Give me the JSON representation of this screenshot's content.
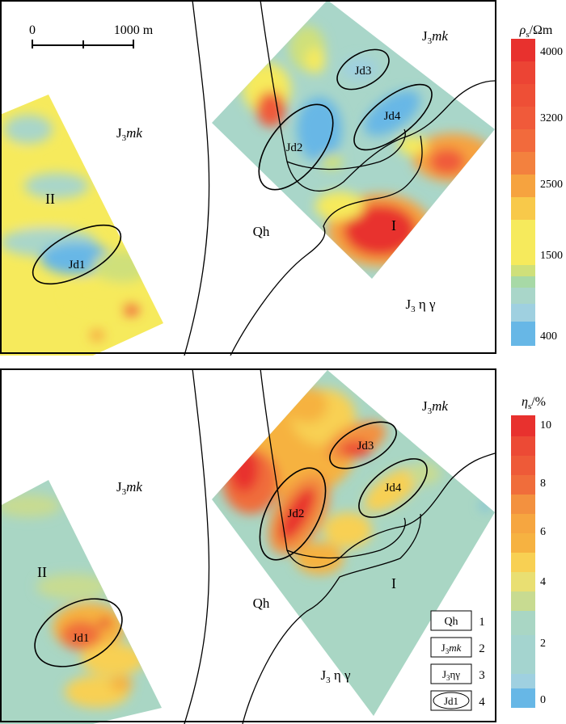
{
  "top_map": {
    "scale_bar": {
      "zero": "0",
      "end": "1000 m"
    },
    "units": {
      "qh": "Qh",
      "j3mk_top": "J3mk",
      "j3mk_left": "J3mk",
      "granite": "J3 η γ"
    },
    "zones": {
      "one": "I",
      "two": "II"
    },
    "anomalies": [
      "Jd1",
      "Jd2",
      "Jd3",
      "Jd4"
    ],
    "colorbar": {
      "title": "ρs/Ωm",
      "ticks": [
        "4000",
        "3200",
        "2500",
        "1500",
        "400"
      ],
      "colors": [
        "#e8312e",
        "#f05a3a",
        "#f3813e",
        "#f6a33f",
        "#f8c94a",
        "#f6ea5c",
        "#cfe07a",
        "#a7d9a6",
        "#a9d6c9",
        "#9fd0e0",
        "#67b7e6"
      ]
    }
  },
  "bottom_map": {
    "units": {
      "qh": "Qh",
      "j3mk_top": "J3mk",
      "j3mk_left": "J3mk",
      "granite": "J3 η γ"
    },
    "zones": {
      "one": "I",
      "two": "II"
    },
    "anomalies": [
      "Jd1",
      "Jd2",
      "Jd3",
      "Jd4"
    ],
    "colorbar": {
      "title": "ηs/%",
      "ticks": [
        "10",
        "8",
        "6",
        "4",
        "2",
        "0"
      ],
      "colors": [
        "#e8312e",
        "#ec4a35",
        "#f06d3b",
        "#f3913f",
        "#f6b241",
        "#f8d053",
        "#e9df72",
        "#c8db91",
        "#a9d6c4",
        "#a4d4cf",
        "#9fd0e0",
        "#67b7e6"
      ]
    },
    "legend": [
      {
        "symbol": "Qh",
        "number": "1"
      },
      {
        "symbol": "J3mk",
        "number": "2"
      },
      {
        "symbol": "J3ηγ",
        "number": "3"
      },
      {
        "symbol": "Jd1",
        "number": "4"
      }
    ]
  },
  "colors": {
    "frame": "#000000",
    "outcrop_line": "#000000"
  }
}
